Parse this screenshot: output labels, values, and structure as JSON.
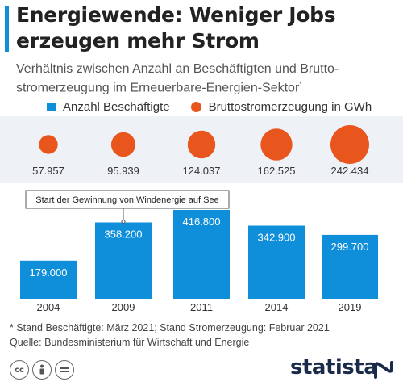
{
  "title": "Energiewende: Weniger Jobs erzeugen mehr Strom",
  "subtitle": "Verhältnis zwischen Anzahl an Beschäftigten und Brutto-stromerzeugung im Erneuerbare-Energien-Sektor",
  "subtitle_mark": "*",
  "legend": {
    "employees": "Anzahl Beschäftigte",
    "generation": "Bruttostromerzeugung in GWh"
  },
  "colors": {
    "accent": "#0f8fd9",
    "bar": "#0f8fd9",
    "bubble": "#e8561e",
    "band": "#eef1f5"
  },
  "chart_data": {
    "type": "bar",
    "categories": [
      "2004",
      "2009",
      "2011",
      "2014",
      "2019"
    ],
    "series": [
      {
        "name": "Anzahl Beschäftigte",
        "values": [
          179000,
          358200,
          416800,
          342900,
          299700
        ],
        "labels": [
          "179.000",
          "358.200",
          "416.800",
          "342.900",
          "299.700"
        ]
      },
      {
        "name": "Bruttostromerzeugung in GWh",
        "values": [
          57957,
          95939,
          124037,
          162525,
          242434
        ],
        "labels": [
          "57.957",
          "95.939",
          "124.037",
          "162.525",
          "242.434"
        ]
      }
    ],
    "annotation": {
      "text": "Start der Gewinnung von Windenergie auf See",
      "category": "2009"
    }
  },
  "footnote": {
    "line1": "* Stand Beschäftigte: März 2021; Stand Stromerzeugung: Februar 2021",
    "line2": "Quelle: Bundesministerium für Wirtschaft und Energie"
  },
  "license_icons": [
    "cc-icon",
    "by-icon",
    "nd-icon"
  ],
  "brand": "statista"
}
